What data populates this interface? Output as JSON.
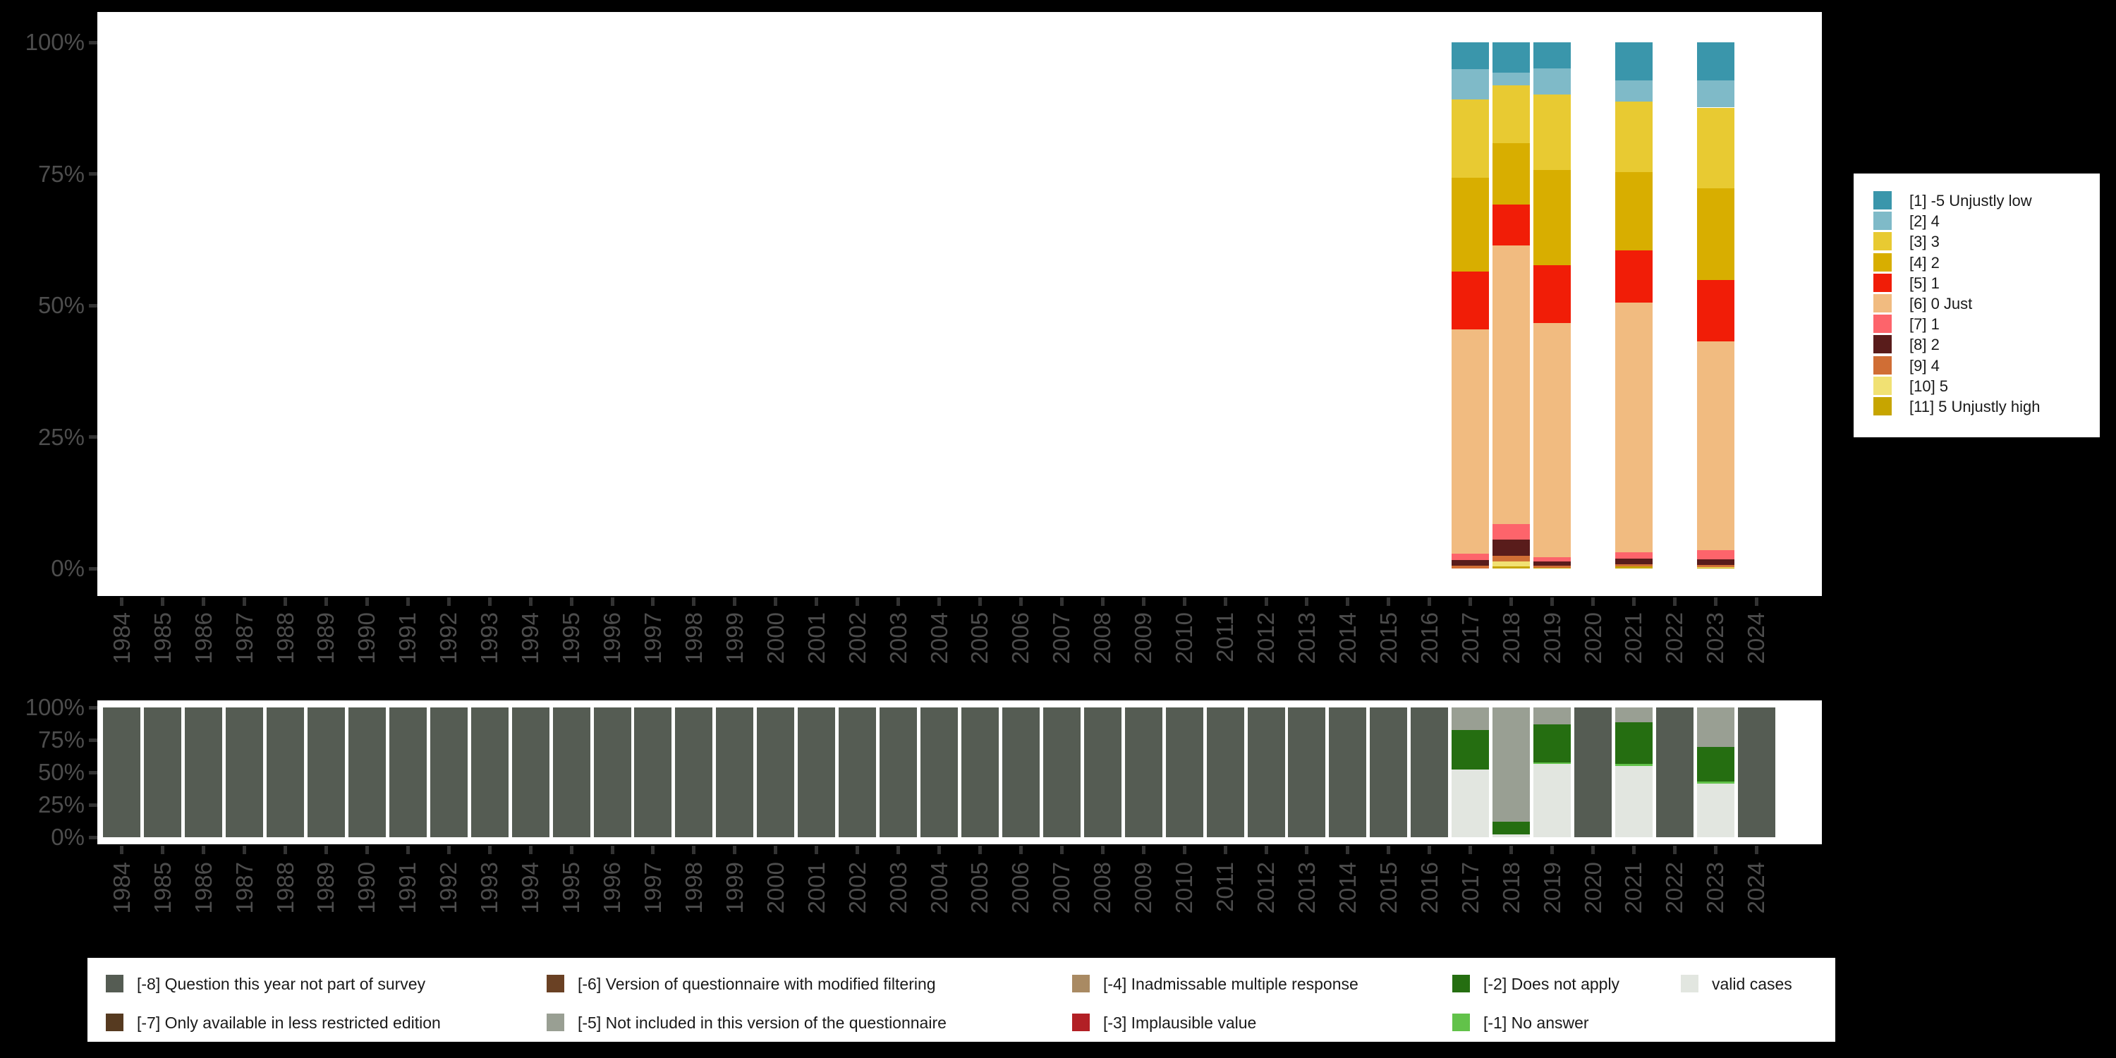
{
  "colors": {
    "background": "#000000",
    "plot_background": "#ffffff",
    "axis_text": "#4d4d4d",
    "tick_mark": "#333333",
    "legend_text": "#1a1a1a",
    "legend_background": "#ffffff"
  },
  "years": [
    "1984",
    "1985",
    "1986",
    "1987",
    "1988",
    "1989",
    "1990",
    "1991",
    "1992",
    "1993",
    "1994",
    "1995",
    "1996",
    "1997",
    "1998",
    "1999",
    "2000",
    "2001",
    "2002",
    "2003",
    "2004",
    "2005",
    "2006",
    "2007",
    "2008",
    "2009",
    "2010",
    "2011",
    "2012",
    "2013",
    "2014",
    "2015",
    "2016",
    "2017",
    "2018",
    "2019",
    "2020",
    "2021",
    "2022",
    "2023",
    "2024"
  ],
  "chart_data": [
    {
      "type": "bar",
      "stacked": true,
      "title": "",
      "xlabel": "",
      "ylabel": "",
      "ylim": [
        0,
        100
      ],
      "grid": false,
      "legend_position": "right",
      "y_tick_labels": [
        "100%",
        "75%",
        "50%",
        "25%",
        "0%"
      ],
      "categories_note": "x categories are survey years 1984-2024; bars exist only for years with data",
      "series": [
        {
          "name": "[1] -5 Unjustly low",
          "color": "#3a96ab",
          "values_by_year": {
            "2017": 5.1,
            "2018": 5.7,
            "2019": 5.0,
            "2021": 7.2,
            "2023": 7.2
          }
        },
        {
          "name": "[2] 4",
          "color": "#7fbac8",
          "values_by_year": {
            "2017": 5.7,
            "2018": 2.5,
            "2019": 4.9,
            "2021": 4.0,
            "2023": 5.2
          }
        },
        {
          "name": "[3] 3",
          "color": "#e8ca32",
          "values_by_year": {
            "2017": 15.0,
            "2018": 11.0,
            "2019": 14.3,
            "2021": 13.4,
            "2023": 15.4
          }
        },
        {
          "name": "[4] 2",
          "color": "#d8ae00",
          "values_by_year": {
            "2017": 17.8,
            "2018": 11.6,
            "2019": 18.1,
            "2021": 15.0,
            "2023": 17.4
          }
        },
        {
          "name": "[5] 1",
          "color": "#f11d07",
          "values_by_year": {
            "2017": 10.9,
            "2018": 7.8,
            "2019": 11.1,
            "2021": 9.8,
            "2023": 11.6
          }
        },
        {
          "name": "[6] 0 Just",
          "color": "#f1bb80",
          "values_by_year": {
            "2017": 42.7,
            "2018": 52.9,
            "2019": 44.5,
            "2021": 47.5,
            "2023": 39.7
          }
        },
        {
          "name": "[7] 1",
          "color": "#fd646b",
          "values_by_year": {
            "2017": 1.2,
            "2018": 3.0,
            "2019": 0.8,
            "2021": 1.2,
            "2023": 1.7
          }
        },
        {
          "name": "[8] 2",
          "color": "#591c1b",
          "values_by_year": {
            "2017": 1.1,
            "2018": 3.1,
            "2019": 0.8,
            "2021": 1.1,
            "2023": 1.1
          }
        },
        {
          "name": "[9] 4",
          "color": "#d06e35",
          "values_by_year": {
            "2017": 0.5,
            "2018": 1.1,
            "2019": 0.3,
            "2021": 0.4,
            "2023": 0.4
          }
        },
        {
          "name": "[10] 5",
          "color": "#f1e173",
          "values_by_year": {
            "2018": 0.9,
            "2019": 0.1,
            "2023": 0.2
          }
        },
        {
          "name": "[11] 5 Unjustly high",
          "color": "#c7a500",
          "values_by_year": {
            "2018": 0.4,
            "2019": 0.1,
            "2021": 0.4,
            "2023": 0.1
          }
        }
      ]
    },
    {
      "type": "bar",
      "stacked": true,
      "title": "",
      "xlabel": "",
      "ylabel": "",
      "ylim": [
        0,
        100
      ],
      "grid": false,
      "legend_position": "bottom",
      "y_tick_labels": [
        "100%",
        "75%",
        "50%",
        "25%",
        "0%"
      ],
      "categories_note": "x categories are survey years 1984-2024",
      "series": [
        {
          "name": "[-8] Question this year not part of survey",
          "color": "#555c53",
          "values_by_year": {
            "1984": 100,
            "1985": 100,
            "1986": 100,
            "1987": 100,
            "1988": 100,
            "1989": 100,
            "1990": 100,
            "1991": 100,
            "1992": 100,
            "1993": 100,
            "1994": 100,
            "1995": 100,
            "1996": 100,
            "1997": 100,
            "1998": 100,
            "1999": 100,
            "2000": 100,
            "2001": 100,
            "2002": 100,
            "2003": 100,
            "2004": 100,
            "2005": 100,
            "2006": 100,
            "2007": 100,
            "2008": 100,
            "2009": 100,
            "2010": 100,
            "2011": 100,
            "2012": 100,
            "2013": 100,
            "2014": 100,
            "2015": 100,
            "2016": 100,
            "2020": 100,
            "2022": 100,
            "2024": 100
          }
        },
        {
          "name": "[-7] Only available in less restricted edition",
          "color": "#563a20",
          "values_by_year": {}
        },
        {
          "name": "[-6] Version of questionnaire with modified filtering",
          "color": "#6a4124",
          "values_by_year": {}
        },
        {
          "name": "[-5] Not included in this version of the questionnaire",
          "color": "#999f93",
          "values_by_year": {
            "2017": 17.4,
            "2018": 88.0,
            "2019": 12.9,
            "2021": 11.6,
            "2023": 30.4
          }
        },
        {
          "name": "[-4] Inadmissable multiple response",
          "color": "#a98a63",
          "values_by_year": {}
        },
        {
          "name": "[-3] Implausible value",
          "color": "#b22025",
          "values_by_year": {}
        },
        {
          "name": "[-2] Does not apply",
          "color": "#256e11",
          "values_by_year": {
            "2017": 30.4,
            "2018": 9.8,
            "2019": 29.5,
            "2021": 32.1,
            "2023": 26.6
          }
        },
        {
          "name": "[-1] No answer",
          "color": "#62c24a",
          "values_by_year": {
            "2019": 1.3,
            "2021": 1.2,
            "2023": 1.5
          }
        },
        {
          "name": "valid cases",
          "color": "#e2e6e0",
          "values_by_year": {
            "2017": 52.2,
            "2018": 2.2,
            "2019": 56.3,
            "2021": 55.1,
            "2023": 41.5
          }
        }
      ]
    }
  ],
  "legend_top": {
    "note": "entries mirror chart_data[0].series order, rendered top to bottom"
  },
  "legend_bottom": {
    "columns": [
      [
        0,
        1
      ],
      [
        2,
        3
      ],
      [
        4,
        5
      ],
      [
        6,
        7
      ],
      [
        8
      ]
    ],
    "note": "two-row legend; numbers are indices into chart_data[1].series"
  }
}
